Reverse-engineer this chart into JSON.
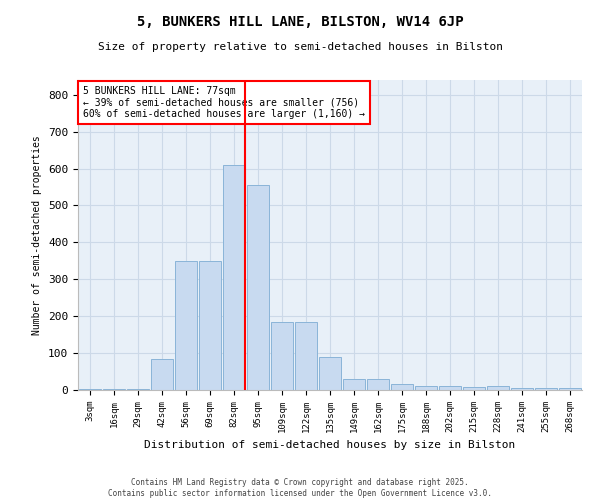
{
  "title": "5, BUNKERS HILL LANE, BILSTON, WV14 6JP",
  "subtitle": "Size of property relative to semi-detached houses in Bilston",
  "xlabel": "Distribution of semi-detached houses by size in Bilston",
  "ylabel": "Number of semi-detached properties",
  "footer": "Contains HM Land Registry data © Crown copyright and database right 2025.\nContains public sector information licensed under the Open Government Licence v3.0.",
  "categories": [
    "3sqm",
    "16sqm",
    "29sqm",
    "42sqm",
    "56sqm",
    "69sqm",
    "82sqm",
    "95sqm",
    "109sqm",
    "122sqm",
    "135sqm",
    "149sqm",
    "162sqm",
    "175sqm",
    "188sqm",
    "202sqm",
    "215sqm",
    "228sqm",
    "241sqm",
    "255sqm",
    "268sqm"
  ],
  "values": [
    4,
    4,
    4,
    85,
    350,
    350,
    610,
    555,
    185,
    185,
    90,
    30,
    30,
    15,
    12,
    10,
    8,
    10,
    5,
    5,
    5
  ],
  "bar_color": "#c8daf0",
  "bar_edge_color": "#8ab4d8",
  "grid_color": "#ccd9e8",
  "background_color": "#e8f0f8",
  "red_line_index": 6,
  "annotation_text": "5 BUNKERS HILL LANE: 77sqm\n← 39% of semi-detached houses are smaller (756)\n60% of semi-detached houses are larger (1,160) →",
  "ylim": [
    0,
    840
  ],
  "yticks": [
    0,
    100,
    200,
    300,
    400,
    500,
    600,
    700,
    800
  ]
}
